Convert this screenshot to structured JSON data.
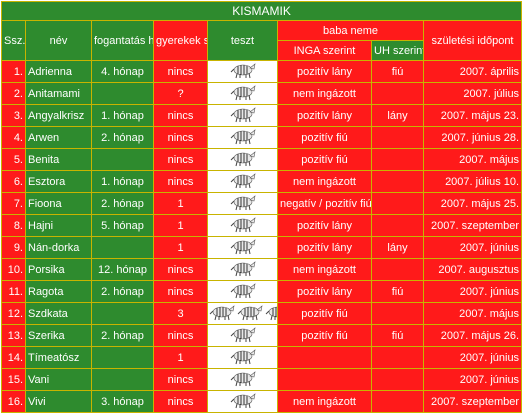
{
  "title": "KISMAMIK",
  "headers": {
    "ssz": "Ssz.",
    "nev": "név",
    "fogantatas": "fogantatás hónapja",
    "gyerekek": "gyerekek száma",
    "teszt": "teszt",
    "baba_neme": "baba neme",
    "inga": "INGA szerint",
    "uh": "UH szerint",
    "szules": "születési időpont"
  },
  "rows": [
    {
      "ssz": "1.",
      "nev": "Adrienna",
      "fog": "4. hónap",
      "gyer": "nincs",
      "zebras": 1,
      "inga": "pozitív lány",
      "uh": "fiú",
      "szul": "2007. április"
    },
    {
      "ssz": "2.",
      "nev": "Anitamami",
      "fog": "",
      "gyer": "?",
      "zebras": 1,
      "inga": "nem ingázott",
      "uh": "",
      "szul": "2007. július"
    },
    {
      "ssz": "3.",
      "nev": "Angyalkrisz",
      "fog": "1. hónap",
      "gyer": "nincs",
      "zebras": 1,
      "inga": "pozitív lány",
      "uh": "lány",
      "szul": "2007. május 23."
    },
    {
      "ssz": "4.",
      "nev": "Arwen",
      "fog": "2. hónap",
      "gyer": "nincs",
      "zebras": 1,
      "inga": "pozitív fiú",
      "uh": "",
      "szul": "2007. június 28."
    },
    {
      "ssz": "5.",
      "nev": "Benita",
      "fog": "",
      "gyer": "nincs",
      "zebras": 1,
      "inga": "pozitív fiú",
      "uh": "",
      "szul": "2007. május"
    },
    {
      "ssz": "6.",
      "nev": "Esztora",
      "fog": "1. hónap",
      "gyer": "nincs",
      "zebras": 1,
      "inga": "nem ingázott",
      "uh": "",
      "szul": "2007. július 10."
    },
    {
      "ssz": "7.",
      "nev": "Fioona",
      "fog": "2. hónap",
      "gyer": "1",
      "zebras": 1,
      "inga": "negatív / pozitív fiú",
      "uh": "",
      "szul": "2007. május 25."
    },
    {
      "ssz": "8.",
      "nev": "Hajni",
      "fog": "5. hónap",
      "gyer": "1",
      "zebras": 1,
      "inga": "pozitív lány",
      "uh": "",
      "szul": "2007. szeptember"
    },
    {
      "ssz": "9.",
      "nev": "Nán-dorka",
      "fog": "",
      "gyer": "1",
      "zebras": 1,
      "inga": "pozitív lány",
      "uh": "lány",
      "szul": "2007. június"
    },
    {
      "ssz": "10.",
      "nev": "Porsika",
      "fog": "12. hónap",
      "gyer": "nincs",
      "zebras": 1,
      "inga": "nem ingázott",
      "uh": "",
      "szul": "2007. augusztus"
    },
    {
      "ssz": "11.",
      "nev": "Ragota",
      "fog": "2. hónap",
      "gyer": "nincs",
      "zebras": 1,
      "inga": "pozitív lány",
      "uh": "fiú",
      "szul": "2007. június"
    },
    {
      "ssz": "12.",
      "nev": "Szdkata",
      "fog": "",
      "gyer": "3",
      "zebras": 3,
      "inga": "pozitív fiú",
      "uh": "",
      "szul": "2007. május"
    },
    {
      "ssz": "13.",
      "nev": "Szerika",
      "fog": "2. hónap",
      "gyer": "nincs",
      "zebras": 1,
      "inga": "pozitív fiú",
      "uh": "fiú",
      "szul": "2007. május 26."
    },
    {
      "ssz": "14.",
      "nev": "Tímeatósz",
      "fog": "",
      "gyer": "1",
      "zebras": 1,
      "inga": "",
      "uh": "",
      "szul": "2007. június"
    },
    {
      "ssz": "15.",
      "nev": "Vani",
      "fog": "",
      "gyer": "nincs",
      "zebras": 1,
      "inga": "",
      "uh": "",
      "szul": "2007. június"
    },
    {
      "ssz": "16.",
      "nev": "Vivi",
      "fog": "3. hónap",
      "gyer": "nincs",
      "zebras": 1,
      "inga": "nem ingázott",
      "uh": "",
      "szul": "2007. szeptember"
    }
  ]
}
